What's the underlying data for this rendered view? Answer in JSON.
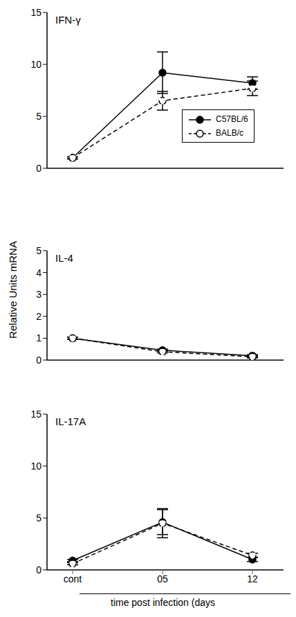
{
  "chart_data": [
    {
      "type": "line",
      "title": "IFN-γ",
      "categories": [
        "cont",
        "05",
        "12"
      ],
      "series": [
        {
          "name": "C57BL/6",
          "color": "#000000",
          "marker": "filled",
          "line_style": "solid",
          "values": [
            1.0,
            9.2,
            8.2
          ],
          "errors": [
            0.1,
            2.0,
            0.6
          ]
        },
        {
          "name": "BALB/c",
          "color": "#000000",
          "marker": "open",
          "line_style": "dashed",
          "values": [
            1.0,
            6.5,
            7.7
          ],
          "errors": [
            0.1,
            0.9,
            0.7
          ]
        }
      ],
      "ylim": [
        0,
        15
      ],
      "yticks": [
        0,
        5,
        10,
        15
      ],
      "legend": "lower right",
      "tick_labels": "y"
    },
    {
      "type": "line",
      "title": "IL-4",
      "ylabel": "Relative Units mRNA",
      "categories": [
        "cont",
        "05",
        "12"
      ],
      "series": [
        {
          "name": "C57BL/6",
          "color": "#000000",
          "marker": "filled",
          "line_style": "solid",
          "values": [
            1.0,
            0.45,
            0.2
          ],
          "errors": [
            0.05,
            0.05,
            0.05
          ]
        },
        {
          "name": "BALB/c",
          "color": "#000000",
          "marker": "open",
          "line_style": "dashed",
          "values": [
            1.0,
            0.38,
            0.15
          ],
          "errors": [
            0.05,
            0.05,
            0.05
          ]
        }
      ],
      "ylim": [
        0,
        5
      ],
      "yticks": [
        0,
        1,
        2,
        3,
        4,
        5
      ],
      "tick_labels": "y"
    },
    {
      "type": "line",
      "title": "IL-17A",
      "xlabel": "time post infection (days",
      "categories": [
        "cont",
        "05",
        "12"
      ],
      "series": [
        {
          "name": "C57BL/6",
          "color": "#000000",
          "marker": "filled",
          "line_style": "solid",
          "values": [
            0.9,
            4.6,
            1.0
          ],
          "errors": [
            0.1,
            1.2,
            0.2
          ]
        },
        {
          "name": "BALB/c",
          "color": "#000000",
          "marker": "open",
          "line_style": "dashed",
          "values": [
            0.6,
            4.5,
            1.4
          ],
          "errors": [
            0.1,
            1.4,
            0.2
          ]
        }
      ],
      "ylim": [
        0,
        15
      ],
      "yticks": [
        0,
        5,
        10,
        15
      ]
    }
  ]
}
